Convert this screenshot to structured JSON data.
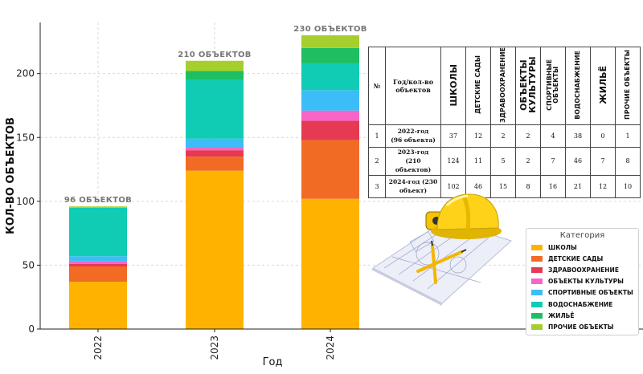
{
  "chart_data": {
    "type": "bar",
    "stacked": true,
    "categories": [
      "2022",
      "2023",
      "2024"
    ],
    "xlabel": "Год",
    "ylabel": "КОЛ-ВО ОБЪЕКТОВ",
    "ylim": [
      0,
      240
    ],
    "yticks": [
      0,
      50,
      100,
      150,
      200
    ],
    "grid": true,
    "legend_title": "Категория",
    "legend_position": "right",
    "totals_labels": [
      "96 ОБЪЕКТОВ",
      "210 ОБЪЕКТОВ",
      "230 ОБЪЕКТОВ"
    ],
    "series": [
      {
        "name": "ШКОЛЫ",
        "color": "#FFB300",
        "values": [
          37,
          124,
          102
        ]
      },
      {
        "name": "ДЕТСКИЕ САДЫ",
        "color": "#F26B24",
        "values": [
          12,
          11,
          46
        ]
      },
      {
        "name": "ЗДРАВООХРАНЕНИЕ",
        "color": "#E53A52",
        "values": [
          2,
          5,
          15
        ]
      },
      {
        "name": "ОБЪЕКТЫ КУЛЬТУРЫ",
        "color": "#F864C8",
        "values": [
          2,
          2,
          8
        ]
      },
      {
        "name": "СПОРТИВНЫЕ ОБЪЕКТЫ",
        "color": "#3DBDF7",
        "values": [
          4,
          7,
          16
        ]
      },
      {
        "name": "ВОДОСНАБЖЕНИЕ",
        "color": "#10CCB4",
        "values": [
          38,
          46,
          21
        ]
      },
      {
        "name": "ЖИЛЬЁ",
        "color": "#1DBF61",
        "values": [
          0,
          7,
          12
        ]
      },
      {
        "name": "ПРОЧИЕ ОБЪЕКТЫ",
        "color": "#A6CF2D",
        "values": [
          1,
          8,
          10
        ]
      }
    ]
  },
  "table": {
    "headers": {
      "num": "№",
      "year": "Год/кол-во объектов",
      "cols": [
        "ШКОЛЫ",
        "ДЕТСКИЕ САДЫ",
        "ЗДРАВООХРАНЕНИЕ",
        "ОБЪЕКТЫ КУЛЬТУРЫ",
        "СПОРТИВНЫЕ ОБЪЕКТЫ",
        "ВОДОСНАБЖЕНИЕ",
        "ЖИЛЬЁ",
        "ПРОЧИЕ ОБЪЕКТЫ"
      ]
    },
    "rows": [
      {
        "num": "1",
        "label_line1": "2022-год",
        "label_line2": "(96 объекта)",
        "values": [
          "37",
          "12",
          "2",
          "2",
          "4",
          "38",
          "0",
          "1"
        ]
      },
      {
        "num": "2",
        "label_line1": "2023-год",
        "label_line2": "(210 объектов)",
        "values": [
          "124",
          "11",
          "5",
          "2",
          "7",
          "46",
          "7",
          "8"
        ]
      },
      {
        "num": "3",
        "label_line1": "2024-год (230",
        "label_line2": "объект)",
        "values": [
          "102",
          "46",
          "15",
          "8",
          "16",
          "21",
          "12",
          "10"
        ]
      }
    ]
  }
}
